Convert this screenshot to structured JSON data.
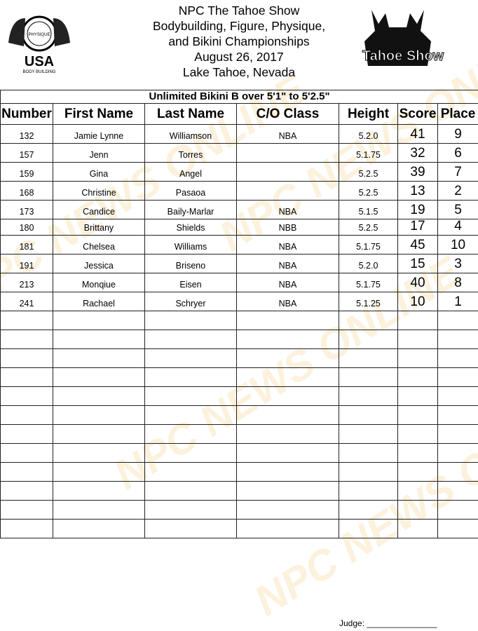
{
  "header": {
    "lines": [
      "NPC The Tahoe Show",
      "Bodybuilding, Figure, Physique,",
      "and Bikini Championships",
      "August 26, 2017",
      "Lake Tahoe, Nevada"
    ]
  },
  "logos": {
    "left": "NATIONAL PHYSIQUE COMMITTEE USA BODY BUILDING",
    "right": "Tahoe Show"
  },
  "watermark": "NPC NEWS ONLINE",
  "table": {
    "title": "Unlimited Bikini B over 5'1\" to 5'2.5\"",
    "columns": [
      "Number",
      "First Name",
      "Last Name",
      "C/O Class",
      "Height",
      "Score",
      "Place"
    ],
    "rows": [
      [
        "132",
        "Jamie Lynne",
        "Williamson",
        "NBA",
        "5.2.0",
        "41",
        "9"
      ],
      [
        "157",
        "Jenn",
        "Torres",
        "",
        "5.1.75",
        "32",
        "6"
      ],
      [
        "159",
        "Gina",
        "Angel",
        "",
        "5.2.5",
        "39",
        "7"
      ],
      [
        "168",
        "Christine",
        "Pasaoa",
        "",
        "5.2.5",
        "13",
        "2"
      ],
      [
        "173",
        "Candice",
        "Baily-Marlar",
        "NBA",
        "5.1.5",
        "19",
        "5"
      ],
      [
        "180",
        "Brittany",
        "Shields",
        "NBB",
        "5.2.5",
        "17",
        "4"
      ],
      [
        "181",
        "Chelsea",
        "Williams",
        "NBA",
        "5.1.75",
        "45",
        "10"
      ],
      [
        "191",
        "Jessica",
        "Briseno",
        "NBA",
        "5.2.0",
        "15",
        "3"
      ],
      [
        "213",
        "Monqiue",
        "Eisen",
        "NBA",
        "5.1.75",
        "40",
        "8"
      ],
      [
        "241",
        "Rachael",
        "Schryer",
        "NBA",
        "5.1.25",
        "10",
        "1"
      ]
    ],
    "empty_rows": 12
  },
  "footer": {
    "judge": "Judge: _______________"
  }
}
